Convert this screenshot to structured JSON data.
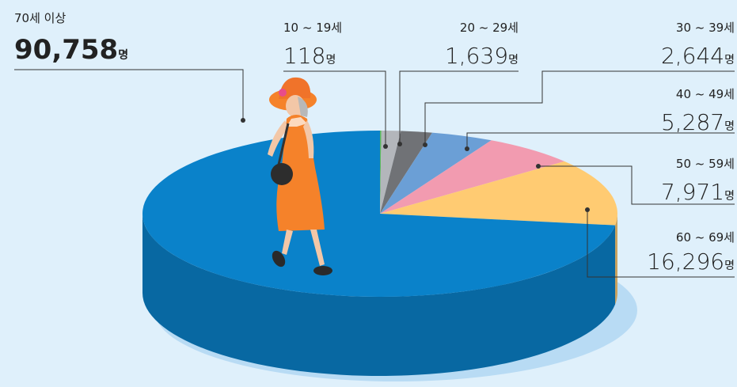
{
  "chart_data": {
    "type": "pie",
    "categories": [
      "10 ~ 19세",
      "20 ~ 29세",
      "30 ~ 39세",
      "40 ~ 49세",
      "50 ~ 59세",
      "60 ~ 69세",
      "70세 이상"
    ],
    "values": [
      118,
      1639,
      2644,
      5287,
      7971,
      16296,
      90758
    ],
    "value_labels": [
      "118",
      "1,639",
      "2,644",
      "5,287",
      "7,971",
      "16,296",
      "90,758"
    ],
    "unit": "명",
    "colors": [
      "#5cb85c",
      "#b3b6bb",
      "#707276",
      "#6b9fd6",
      "#f29bb0",
      "#ffcb72",
      "#0a82ca"
    ]
  }
}
